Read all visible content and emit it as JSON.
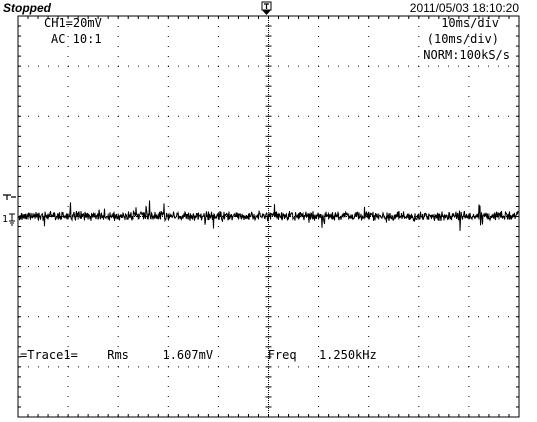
{
  "header": {
    "status": "Stopped",
    "datetime": "2011/05/03  18:10:20"
  },
  "overlay": {
    "ch1_scale": "CH1=20mV",
    "coupling": "AC  10:1",
    "timebase": "10ms/div",
    "timebase_window": "(10ms/div)",
    "acq_mode": "NORM:100kS/s"
  },
  "markers": {
    "ground_label": "1"
  },
  "measurement": {
    "trace": "=Trace1=",
    "rms_label": "Rms",
    "rms_value": "1.607mV",
    "freq_label": "Freq",
    "freq_value": "1.250kHz"
  },
  "colors": {
    "background": "#ffffff",
    "trace": "#000000",
    "grid": "#000000"
  }
}
